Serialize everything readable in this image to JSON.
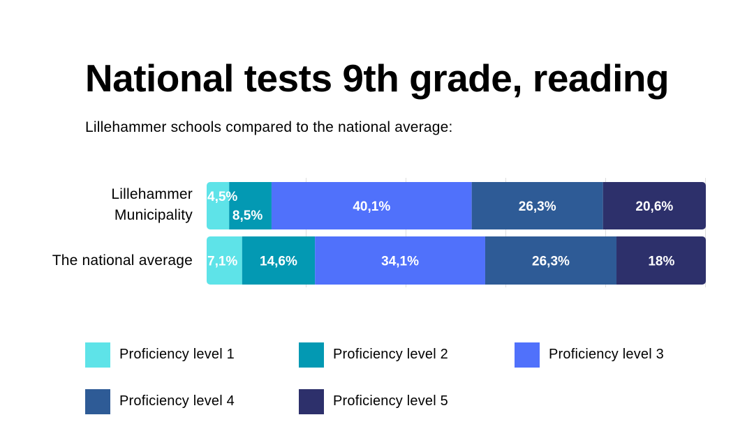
{
  "chart_data": {
    "type": "bar",
    "orientation": "horizontal",
    "stacked": true,
    "title": "National tests 9th grade, reading",
    "subtitle": "Lillehammer schools compared to the national average:",
    "categories": [
      "Lillehammer Municipality",
      "The national average"
    ],
    "category_lines": [
      [
        "Lillehammer",
        "Municipality"
      ],
      [
        "The national average"
      ]
    ],
    "series": [
      {
        "name": "Proficiency level 1",
        "color": "#5ee3e8",
        "values": [
          4.5,
          7.1
        ],
        "labels": [
          "4,5%",
          "7,1%"
        ]
      },
      {
        "name": "Proficiency level 2",
        "color": "#0399b3",
        "values": [
          8.5,
          14.6
        ],
        "labels": [
          "8,5%",
          "14,6%"
        ]
      },
      {
        "name": "Proficiency level 3",
        "color": "#5071fb",
        "values": [
          40.1,
          34.1
        ],
        "labels": [
          "40,1%",
          "34,1%"
        ]
      },
      {
        "name": "Proficiency level 4",
        "color": "#2e5b96",
        "values": [
          26.3,
          26.3
        ],
        "labels": [
          "26,3%",
          "26,3%"
        ]
      },
      {
        "name": "Proficiency level 5",
        "color": "#2d306b",
        "values": [
          20.6,
          18
        ],
        "labels": [
          "20,6%",
          "18%"
        ]
      }
    ],
    "xlim": [
      0,
      100
    ],
    "legend": "bottom"
  }
}
